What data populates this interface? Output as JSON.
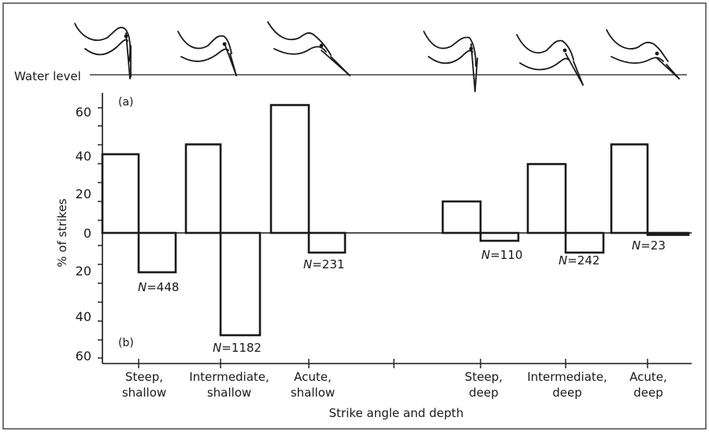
{
  "chart_data": {
    "type": "bar",
    "title": "",
    "xlabel": "Strike angle and depth",
    "ylabel": "% of strikes",
    "water_level_label": "Water level",
    "panel_labels": {
      "upper": "(a)",
      "lower": "(b)"
    },
    "y_tick_labels_upper": [
      "60",
      "40",
      "20",
      "0"
    ],
    "y_tick_labels_lower": [
      "20",
      "40",
      "60"
    ],
    "ylim": [
      -65,
      65
    ],
    "categories": [
      {
        "line1": "Steep,",
        "line2": "shallow"
      },
      {
        "line1": "Intermediate,",
        "line2": "shallow"
      },
      {
        "line1": "Acute,",
        "line2": "shallow"
      },
      {
        "line1": "Steep,",
        "line2": "deep"
      },
      {
        "line1": "Intermediate,",
        "line2": "deep"
      },
      {
        "line1": "Acute,",
        "line2": "deep"
      }
    ],
    "series": [
      {
        "name": "(a)",
        "values": [
          40,
          45,
          65,
          16,
          35,
          45
        ]
      },
      {
        "name": "(b)",
        "values": [
          -20,
          -52,
          -10,
          -4,
          -10,
          -1
        ]
      }
    ],
    "n_labels": [
      "N=448",
      "N=1182",
      "N=231",
      "N=110",
      "N=242",
      "N=23"
    ]
  }
}
